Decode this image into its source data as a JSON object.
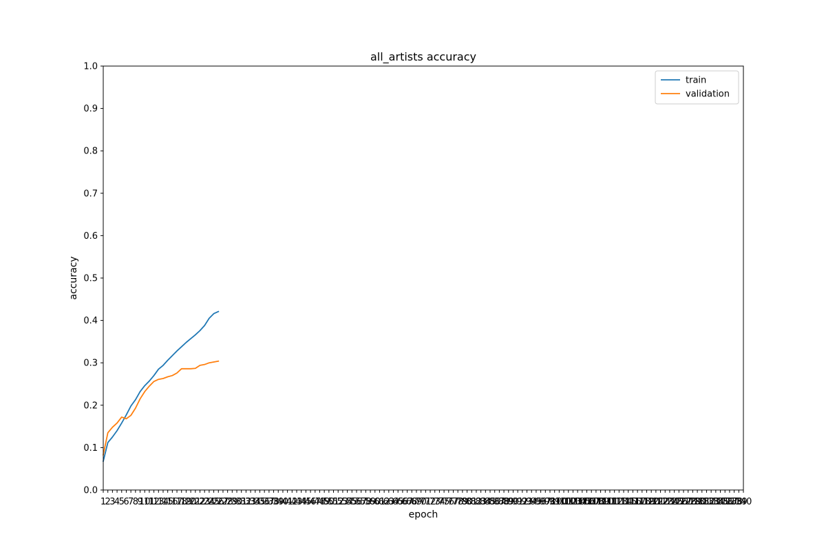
{
  "chart_data": {
    "type": "line",
    "title": "all_artists accuracy",
    "xlabel": "epoch",
    "ylabel": "accuracy",
    "xlim": [
      1,
      140
    ],
    "ylim": [
      0,
      1
    ],
    "x_ticks": [
      1,
      2,
      3,
      4,
      5,
      6,
      7,
      8,
      9,
      10,
      11,
      12,
      13,
      14,
      15,
      16,
      17,
      18,
      19,
      20,
      21,
      22,
      23,
      24,
      25,
      26,
      27,
      28,
      29,
      30,
      31,
      32,
      33,
      34,
      35,
      36,
      37,
      38,
      39,
      40,
      41,
      42,
      43,
      44,
      45,
      46,
      47,
      48,
      49,
      50,
      51,
      52,
      53,
      54,
      55,
      56,
      57,
      58,
      59,
      60,
      61,
      62,
      63,
      64,
      65,
      66,
      67,
      68,
      69,
      70,
      71,
      72,
      73,
      74,
      75,
      76,
      77,
      78,
      79,
      80,
      81,
      82,
      83,
      84,
      85,
      86,
      87,
      88,
      89,
      90,
      91,
      92,
      93,
      94,
      95,
      96,
      97,
      98,
      99,
      100,
      101,
      102,
      103,
      104,
      105,
      106,
      107,
      108,
      109,
      110,
      111,
      112,
      113,
      114,
      115,
      116,
      117,
      118,
      119,
      120,
      121,
      122,
      123,
      124,
      125,
      126,
      127,
      128,
      129,
      130,
      131,
      132,
      133,
      134,
      135,
      136,
      137,
      138,
      139,
      140
    ],
    "y_ticks": [
      0.0,
      0.1,
      0.2,
      0.3,
      0.4,
      0.5,
      0.6,
      0.7,
      0.8,
      0.9,
      1.0
    ],
    "grid": false,
    "legend_position": "top-right",
    "x": [
      1,
      2,
      3,
      4,
      5,
      6,
      7,
      8,
      9,
      10,
      11,
      12,
      13,
      14,
      15,
      16,
      17,
      18,
      19,
      20,
      21,
      22,
      23,
      24,
      25,
      26
    ],
    "series": [
      {
        "name": "train",
        "color": "#1f77b4",
        "values": [
          0.068,
          0.112,
          0.125,
          0.14,
          0.158,
          0.177,
          0.198,
          0.213,
          0.232,
          0.246,
          0.257,
          0.27,
          0.285,
          0.294,
          0.306,
          0.317,
          0.328,
          0.338,
          0.348,
          0.357,
          0.366,
          0.376,
          0.388,
          0.405,
          0.416,
          0.421
        ]
      },
      {
        "name": "validation",
        "color": "#ff7f0e",
        "values": [
          0.083,
          0.135,
          0.148,
          0.158,
          0.172,
          0.168,
          0.176,
          0.193,
          0.215,
          0.232,
          0.245,
          0.256,
          0.261,
          0.263,
          0.267,
          0.27,
          0.276,
          0.286,
          0.286,
          0.286,
          0.287,
          0.294,
          0.296,
          0.3,
          0.302,
          0.304
        ]
      }
    ]
  }
}
